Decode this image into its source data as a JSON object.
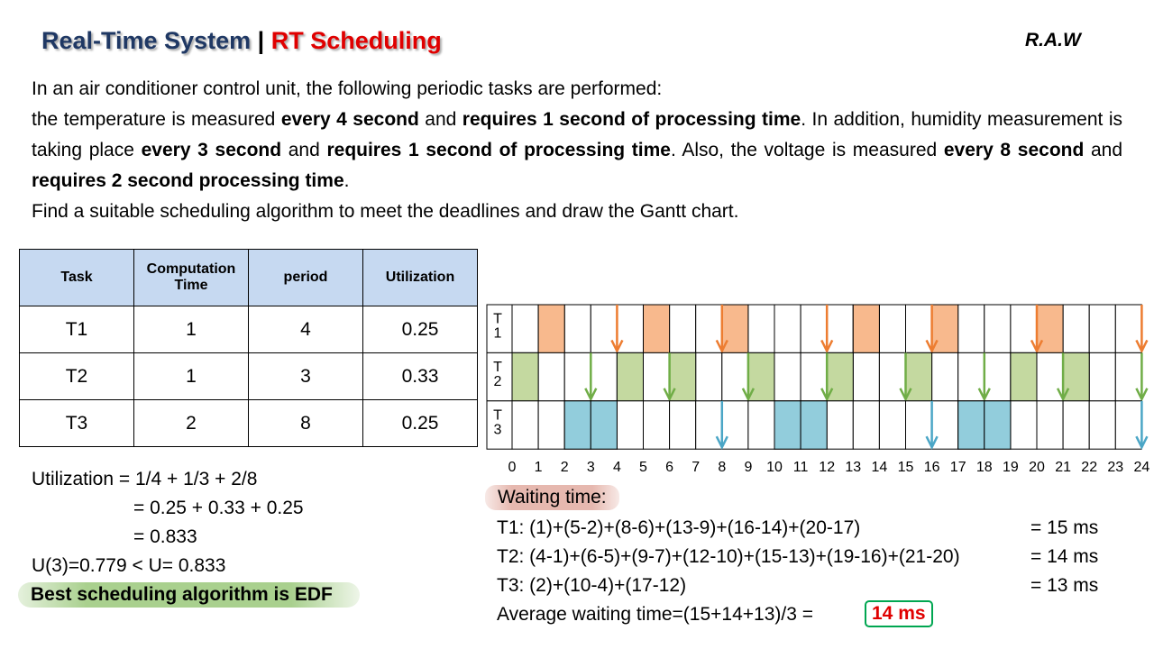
{
  "header": {
    "title_main": "Real-Time System",
    "separator": "|",
    "title_sub": "RT Scheduling",
    "author": "R.A.W"
  },
  "problem": {
    "paragraphs": [
      [
        {
          "text": "In an air conditioner control unit, the following periodic tasks are performed:",
          "bold": false
        }
      ],
      [
        {
          "text": "the temperature is measured ",
          "bold": false
        },
        {
          "text": "every 4 second",
          "bold": true
        },
        {
          "text": " and ",
          "bold": false
        },
        {
          "text": "requires 1 second of processing time",
          "bold": true
        },
        {
          "text": ". In addition, humidity measurement is taking place ",
          "bold": false
        },
        {
          "text": "every 3 second",
          "bold": true
        },
        {
          "text": " and ",
          "bold": false
        },
        {
          "text": "requires 1 second of processing time",
          "bold": true
        },
        {
          "text": ". Also, the voltage is measured ",
          "bold": false
        },
        {
          "text": "every 8 second",
          "bold": true
        },
        {
          "text": " and ",
          "bold": false
        },
        {
          "text": "requires 2 second processing time",
          "bold": true
        },
        {
          "text": ".",
          "bold": false
        }
      ],
      [
        {
          "text": "Find a suitable scheduling algorithm to meet the deadlines and draw the Gantt chart.",
          "bold": false
        }
      ]
    ]
  },
  "table": {
    "header": [
      "Task",
      "Computation Time",
      "period",
      "Utilization"
    ],
    "rows": [
      [
        "T1",
        "1",
        "4",
        "0.25"
      ],
      [
        "T2",
        "1",
        "3",
        "0.33"
      ],
      [
        "T3",
        "2",
        "8",
        "0.25"
      ]
    ]
  },
  "utilization": {
    "lines": [
      "Utilization =   1/4  +  1/3  + 2/8",
      "=  0.25 + 0.33 + 0.25",
      "=  0.833",
      "U(3)=0.779 < U= 0.833"
    ],
    "conclusion": "Best scheduling algorithm is EDF"
  },
  "gantt": {
    "time_labels": [
      0,
      1,
      2,
      3,
      4,
      5,
      6,
      7,
      8,
      9,
      10,
      11,
      12,
      13,
      14,
      15,
      16,
      17,
      18,
      19,
      20,
      21,
      22,
      23,
      24
    ],
    "tasks": [
      {
        "name": "T1",
        "color": "#f8b98d",
        "arrow_color": "#ed7d31",
        "slots": [
          1,
          5,
          8,
          13,
          16,
          20
        ],
        "deadlines": [
          4,
          8,
          12,
          16,
          20,
          24
        ]
      },
      {
        "name": "T2",
        "color": "#c4d9a0",
        "arrow_color": "#70ad47",
        "slots": [
          0,
          4,
          6,
          9,
          12,
          15,
          19,
          21
        ],
        "deadlines": [
          3,
          6,
          9,
          12,
          15,
          18,
          21,
          24
        ]
      },
      {
        "name": "T3",
        "color": "#92cddc",
        "arrow_color": "#4ba6c6",
        "slots": [
          2,
          3,
          10,
          11,
          17,
          18
        ],
        "deadlines": [
          8,
          16,
          24
        ]
      }
    ]
  },
  "waiting": {
    "title": "Waiting time:",
    "lines": [
      {
        "formula": "T1: (1)+(5-2)+(8-6)+(13-9)+(16-14)+(20-17)",
        "result": "= 15 ms"
      },
      {
        "formula": "T2: (4-1)+(6-5)+(9-7)+(12-10)+(15-13)+(19-16)+(21-20)",
        "result": "= 14 ms"
      },
      {
        "formula": "T3: (2)+(10-4)+(17-12)",
        "result": "= 13 ms"
      }
    ],
    "average_formula": "Average waiting time=(15+14+13)/3  =",
    "average_result": "14 ms"
  }
}
